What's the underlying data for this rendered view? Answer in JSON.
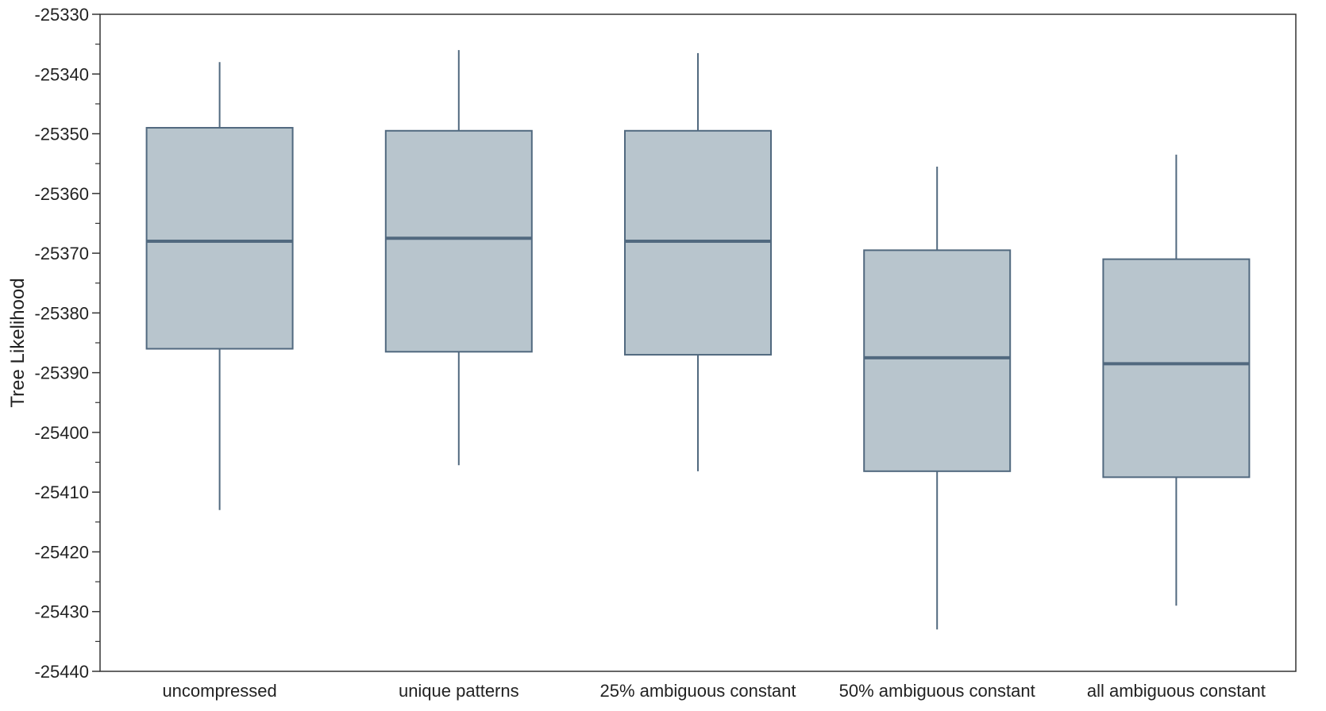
{
  "chart_data": {
    "type": "box",
    "title": "",
    "xlabel": "",
    "ylabel": "Tree Likelihood",
    "ylim": [
      -25440,
      -25330
    ],
    "yticks": [
      -25330,
      -25340,
      -25350,
      -25360,
      -25370,
      -25380,
      -25390,
      -25400,
      -25410,
      -25420,
      -25430,
      -25440
    ],
    "ytick_labels": [
      "-25330",
      "-25340",
      "-25350",
      "-25360",
      "-25370",
      "-25380",
      "-25390",
      "-25400",
      "-25410",
      "-25420",
      "-25430",
      "-25440"
    ],
    "minor_tick_step": 5,
    "grid": false,
    "categories": [
      "uncompressed",
      "unique patterns",
      "25% ambiguous constant",
      "50% ambiguous constant",
      "all ambiguous constant"
    ],
    "boxes": [
      {
        "whisker_high": -25338,
        "q3": -25349,
        "median": -25368,
        "q1": -25386,
        "whisker_low": -25413
      },
      {
        "whisker_high": -25336,
        "q3": -25349.5,
        "median": -25367.5,
        "q1": -25386.5,
        "whisker_low": -25405.5
      },
      {
        "whisker_high": -25336.5,
        "q3": -25349.5,
        "median": -25368,
        "q1": -25387,
        "whisker_low": -25406.5
      },
      {
        "whisker_high": -25355.5,
        "q3": -25369.5,
        "median": -25387.5,
        "q1": -25406.5,
        "whisker_low": -25433
      },
      {
        "whisker_high": -25353.5,
        "q3": -25371,
        "median": -25388.5,
        "q1": -25407.5,
        "whisker_low": -25429
      }
    ],
    "colors": {
      "box_fill": "#b8c5cd",
      "box_stroke": "#51697f",
      "axis": "#333333",
      "text": "#222222"
    }
  }
}
